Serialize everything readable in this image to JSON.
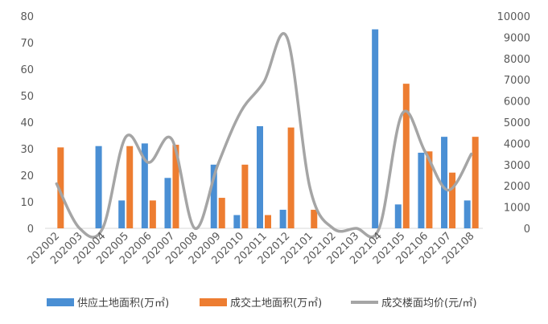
{
  "chart_data": {
    "type": "bar",
    "categories": [
      "202002",
      "202003",
      "202004",
      "202005",
      "202006",
      "202007",
      "202008",
      "202009",
      "202010",
      "202011",
      "202012",
      "202101",
      "202102",
      "202103",
      "202104",
      "202105",
      "202106",
      "202107",
      "202108"
    ],
    "series": [
      {
        "name": "供应土地面积(万㎡)",
        "type": "bar",
        "axis": "left",
        "color": "#4A8FD4",
        "values": [
          0,
          0,
          31,
          10.5,
          32,
          19,
          0,
          24,
          5,
          38.5,
          7,
          0,
          0,
          0,
          75,
          9,
          28.5,
          34.5,
          10.5
        ]
      },
      {
        "name": "成交土地面积(万㎡)",
        "type": "bar",
        "axis": "left",
        "color": "#ED7D31",
        "values": [
          30.5,
          0,
          0,
          31,
          10.5,
          31.5,
          0,
          11.5,
          24,
          5,
          38,
          7,
          0,
          0,
          0,
          54.5,
          29,
          21,
          34.5
        ]
      },
      {
        "name": "成交楼面均价(元/㎡)",
        "type": "line",
        "axis": "right",
        "color": "#A5A5A5",
        "values": [
          2100,
          0,
          0,
          4300,
          3100,
          4200,
          0,
          3000,
          5500,
          6900,
          9000,
          1900,
          0,
          0,
          0,
          5400,
          3600,
          1800,
          3500
        ]
      }
    ],
    "y_left": {
      "min": 0,
      "max": 80,
      "ticks": [
        0,
        10,
        20,
        30,
        40,
        50,
        60,
        70,
        80
      ]
    },
    "y_right": {
      "min": 0,
      "max": 10000,
      "ticks": [
        0,
        1000,
        2000,
        3000,
        4000,
        5000,
        6000,
        7000,
        8000,
        9000,
        10000
      ]
    },
    "legend_position": "bottom",
    "grid": false
  }
}
